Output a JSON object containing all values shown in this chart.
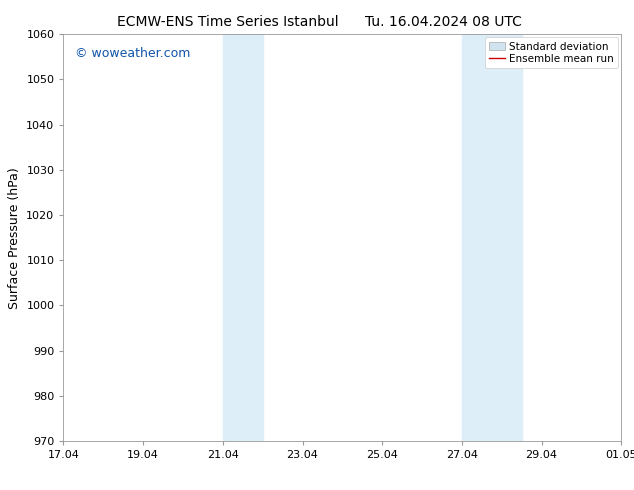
{
  "title": "ECMW-ENS Time Series Istanbul",
  "title2": "Tu. 16.04.2024 08 UTC",
  "ylabel": "Surface Pressure (hPa)",
  "ylim": [
    970,
    1060
  ],
  "yticks": [
    970,
    980,
    990,
    1000,
    1010,
    1020,
    1030,
    1040,
    1050,
    1060
  ],
  "xtick_labels": [
    "17.04",
    "19.04",
    "21.04",
    "23.04",
    "25.04",
    "27.04",
    "29.04",
    "01.05"
  ],
  "xtick_positions": [
    0,
    2,
    4,
    6,
    8,
    10,
    12,
    14
  ],
  "background_color": "#ffffff",
  "plot_bg_color": "#ffffff",
  "shaded_regions": [
    {
      "x_start": 4,
      "x_end": 5.0,
      "color": "#ddeef8"
    },
    {
      "x_start": 10,
      "x_end": 11.5,
      "color": "#ddeef8"
    }
  ],
  "watermark_text": "© woweather.com",
  "watermark_color": "#1155aa",
  "legend_std_dev_color": "#d0e4f0",
  "legend_mean_color": "#cc0000",
  "title_fontsize": 10,
  "ylabel_fontsize": 9,
  "tick_fontsize": 8,
  "watermark_fontsize": 9,
  "legend_fontsize": 7.5,
  "grid_color": "#dddddd",
  "spine_color": "#999999",
  "x_total": 14
}
